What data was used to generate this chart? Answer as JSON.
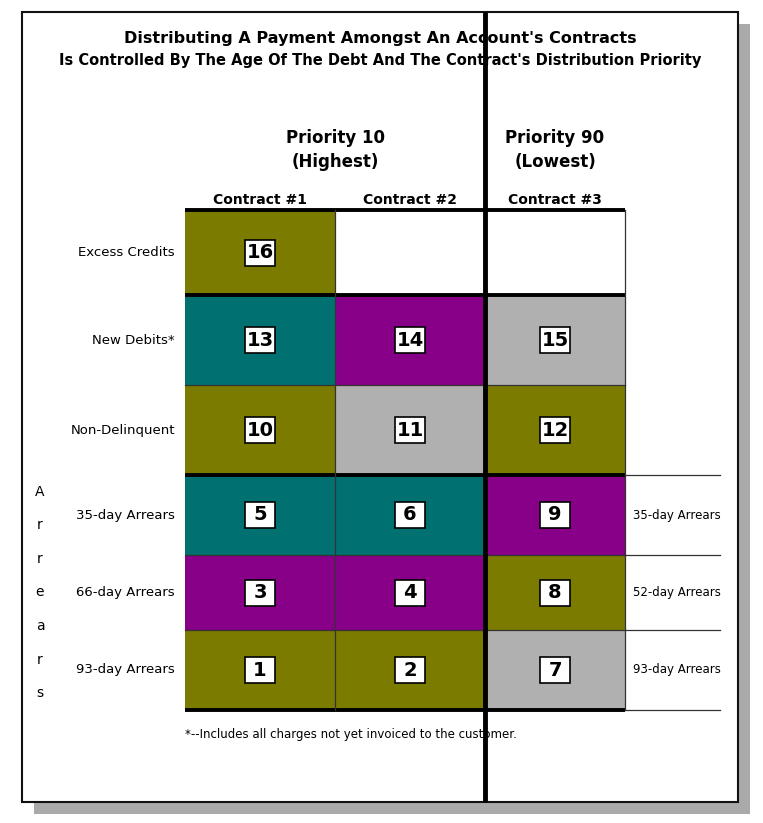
{
  "title_line1": "Distributing A Payment Amongst An Account's Contracts",
  "title_line2": "Is Controlled By The Age Of The Debt And The Contract's Distribution Priority",
  "priority_left_label": "Priority 10\n(Highest)",
  "priority_right_label": "Priority 90\n(Lowest)",
  "contract_labels": [
    "Contract #1",
    "Contract #2",
    "Contract #3"
  ],
  "row_labels_left": [
    "Excess Credits",
    "New Debits*",
    "Non-Delinquent",
    "35-day Arrears",
    "66-day Arrears",
    "93-day Arrears"
  ],
  "row_labels_right": [
    "35-day Arrears",
    "52-day Arrears",
    "93-day Arrears"
  ],
  "arrears_letter": [
    "A",
    "r",
    "r",
    "e",
    "a",
    "r",
    "s"
  ],
  "footnote": "*--Includes all charges not yet invoiced to the customer.",
  "cells": [
    {
      "row": 0,
      "col": 0,
      "num": "16",
      "color": "#7b7b00"
    },
    {
      "row": 0,
      "col": 1,
      "num": "",
      "color": "#ffffff"
    },
    {
      "row": 0,
      "col": 2,
      "num": "",
      "color": "#ffffff"
    },
    {
      "row": 1,
      "col": 0,
      "num": "13",
      "color": "#007070"
    },
    {
      "row": 1,
      "col": 1,
      "num": "14",
      "color": "#880088"
    },
    {
      "row": 1,
      "col": 2,
      "num": "15",
      "color": "#b0b0b0"
    },
    {
      "row": 2,
      "col": 0,
      "num": "10",
      "color": "#7b7b00"
    },
    {
      "row": 2,
      "col": 1,
      "num": "11",
      "color": "#b0b0b0"
    },
    {
      "row": 2,
      "col": 2,
      "num": "12",
      "color": "#7b7b00"
    },
    {
      "row": 3,
      "col": 0,
      "num": "5",
      "color": "#007070"
    },
    {
      "row": 3,
      "col": 1,
      "num": "6",
      "color": "#007070"
    },
    {
      "row": 3,
      "col": 2,
      "num": "9",
      "color": "#880088"
    },
    {
      "row": 4,
      "col": 0,
      "num": "3",
      "color": "#880088"
    },
    {
      "row": 4,
      "col": 1,
      "num": "4",
      "color": "#880088"
    },
    {
      "row": 4,
      "col": 2,
      "num": "8",
      "color": "#7b7b00"
    },
    {
      "row": 5,
      "col": 0,
      "num": "1",
      "color": "#7b7b00"
    },
    {
      "row": 5,
      "col": 1,
      "num": "2",
      "color": "#7b7b00"
    },
    {
      "row": 5,
      "col": 2,
      "num": "7",
      "color": "#b0b0b0"
    }
  ],
  "bg_color": "#ffffff",
  "shadow_color": "#aaaaaa",
  "panel_border_color": "#111111",
  "thick_line_color": "#000000",
  "thin_line_color": "#333333"
}
